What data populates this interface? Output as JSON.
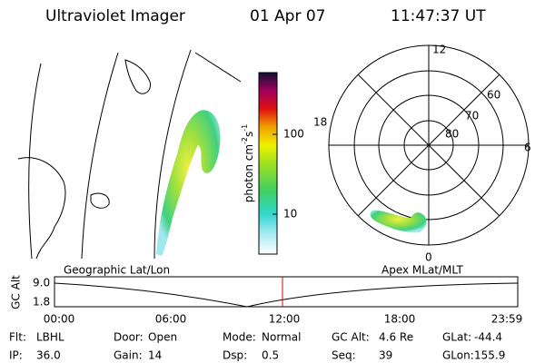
{
  "header": {
    "title": "Ultraviolet Imager",
    "date": "01 Apr 07",
    "time": "11:47:37 UT"
  },
  "colorbar": {
    "unit": {
      "base": "photon cm",
      "exp1": "-2",
      "mid": "s",
      "exp2": "-1"
    },
    "ticks": [
      "100",
      "10"
    ]
  },
  "polar": {
    "mlt_labels": [
      "12",
      "18",
      "6",
      "0"
    ],
    "lat_labels": [
      "60",
      "70",
      "80"
    ]
  },
  "panels": {
    "left_label": "Geographic Lat/Lon",
    "right_label": "Apex MLat/MLT"
  },
  "altitude": {
    "axis_label": "GC Alt",
    "yticks": [
      "9.0",
      "1.8"
    ],
    "xticks": [
      "00:00",
      "06:00",
      "12:00",
      "18:00",
      "23:59"
    ]
  },
  "footer": {
    "rows": [
      [
        {
          "label": "Flt:",
          "value": "LBHL"
        },
        {
          "label": "Door:",
          "value": "Open"
        },
        {
          "label": "Mode:",
          "value": "Normal"
        },
        {
          "label": "GC Alt:",
          "value": "4.6 Re"
        },
        {
          "label": "GLat:",
          "value": "-44.4"
        }
      ],
      [
        {
          "label": "IP:",
          "value": "36.0"
        },
        {
          "label": "Gain:",
          "value": "14"
        },
        {
          "label": "Dsp:",
          "value": "0.5"
        },
        {
          "label": "Seq:",
          "value": "39"
        },
        {
          "label": "GLon:",
          "value": "155.9"
        }
      ]
    ]
  }
}
